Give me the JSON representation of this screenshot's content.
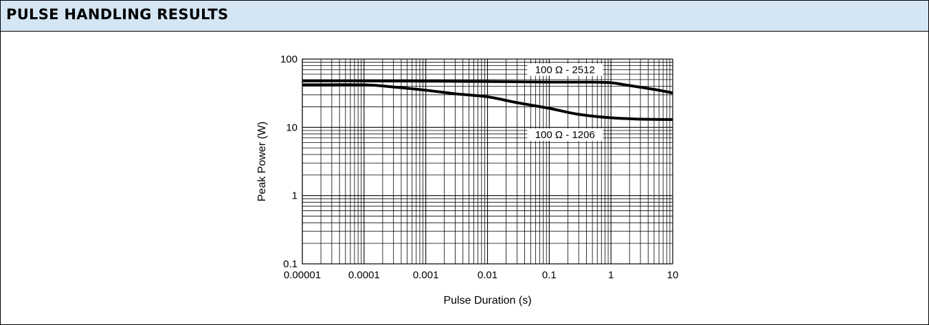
{
  "header": {
    "title": "PULSE HANDLING RESULTS"
  },
  "chart_data": {
    "type": "line",
    "xscale": "log",
    "yscale": "log",
    "xlim": [
      1e-05,
      10
    ],
    "ylim": [
      0.1,
      100
    ],
    "xlabel": "Pulse Duration (s)",
    "ylabel": "Peak Power (W)",
    "x_tick_labels": [
      "0.00001",
      "0.0001",
      "0.001",
      "0.01",
      "0.1",
      "1",
      "10"
    ],
    "y_tick_labels": [
      "0.1",
      "1",
      "10",
      "100"
    ],
    "grid": true,
    "line_color": "#000000",
    "series": [
      {
        "name": "100 Ω - 2512",
        "x": [
          1e-05,
          0.0001,
          0.001,
          0.01,
          0.1,
          0.5,
          1,
          2,
          5,
          10
        ],
        "y": [
          48,
          48,
          47.5,
          47,
          46,
          46,
          45,
          41,
          36,
          32
        ]
      },
      {
        "name": "100 Ω - 1206",
        "x": [
          1e-05,
          0.0001,
          0.0003,
          0.001,
          0.003,
          0.01,
          0.03,
          0.1,
          0.3,
          1,
          3,
          10
        ],
        "y": [
          42,
          42,
          39,
          35,
          31,
          28,
          23,
          19,
          15.5,
          13.8,
          13.2,
          13
        ]
      }
    ]
  }
}
